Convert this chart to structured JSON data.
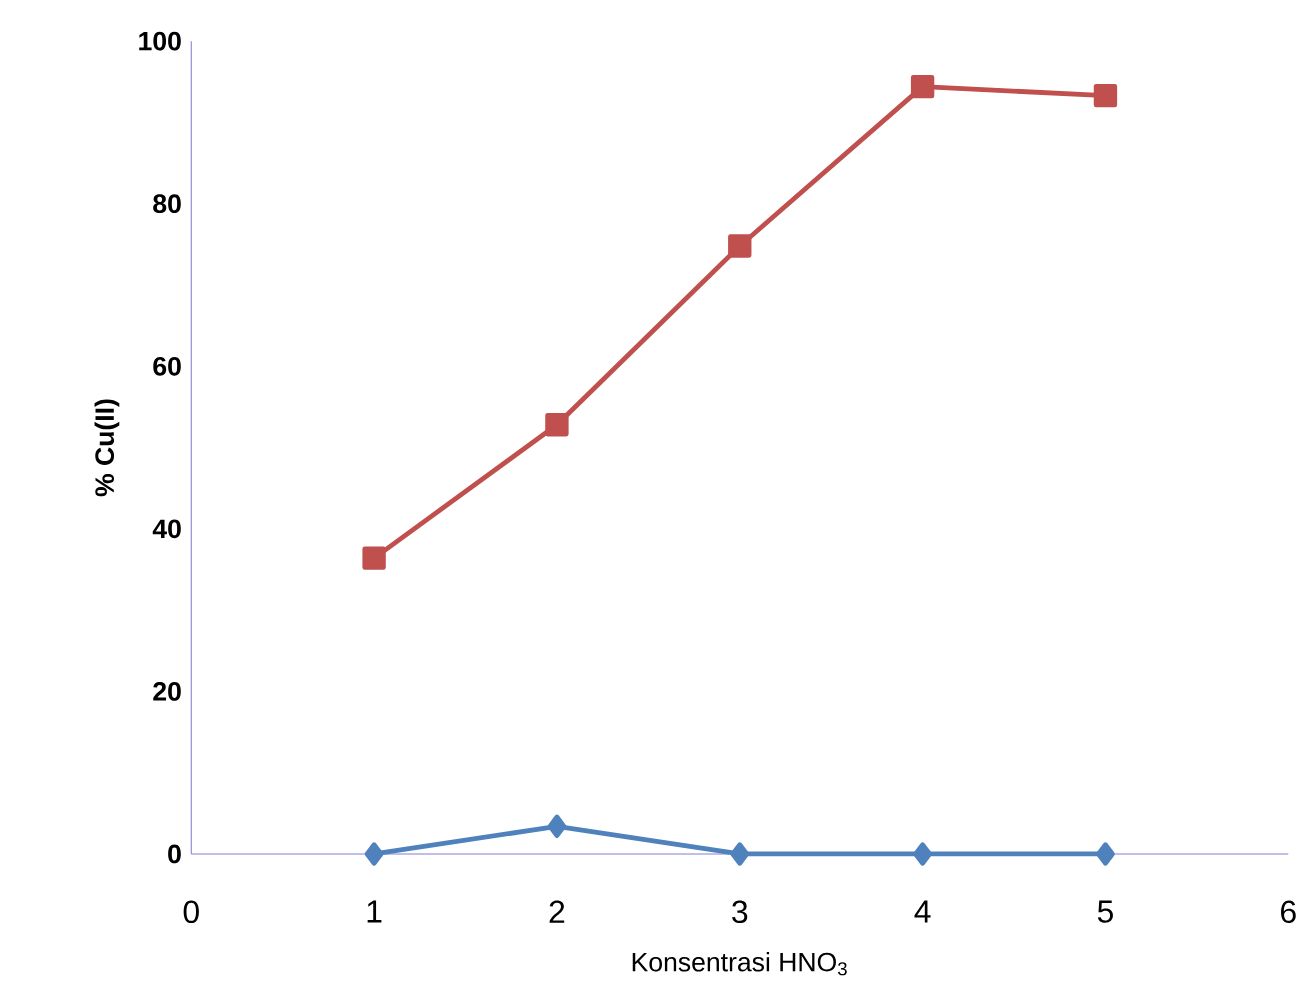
{
  "chart_data": {
    "type": "line",
    "xlabel": "Konsentrasi HNO$_{3}$",
    "ylabel": "% Cu(II)",
    "x": [
      1,
      2,
      3,
      4,
      5
    ],
    "series": [
      {
        "color": "#4f81bd",
        "marker": "diamond",
        "values": [
          0,
          3.4,
          0,
          0,
          0
        ]
      },
      {
        "color": "#c0504d",
        "marker": "square",
        "values": [
          36.4,
          52.8,
          74.8,
          94.4,
          93.3
        ]
      }
    ],
    "xlim": [
      0,
      6
    ],
    "ylim": [
      0,
      100
    ],
    "xticks": [
      0,
      1,
      2,
      3,
      4,
      5,
      6
    ],
    "yticks": [
      0,
      20,
      40,
      60,
      80,
      100
    ],
    "grid": false
  }
}
